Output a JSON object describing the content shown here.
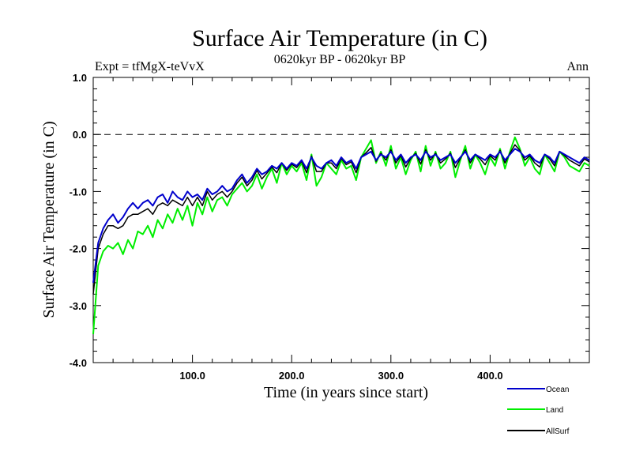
{
  "chart_data": {
    "type": "line",
    "title": "Surface Air Temperature (in C)",
    "subtitle": "0620kyr BP - 0620kyr BP",
    "left_header": "Expt = tfMgX-teVvX",
    "right_header": "Ann",
    "xlabel": "Time (in years since start)",
    "ylabel": "Surface Air Temperature (in C)",
    "xlim": [
      0,
      500
    ],
    "ylim": [
      -4.0,
      1.0
    ],
    "xticks": [
      100,
      200,
      300,
      400
    ],
    "xtick_labels": [
      "100.0",
      "200.0",
      "300.0",
      "400.0"
    ],
    "yticks": [
      1.0,
      0.0,
      -1.0,
      -2.0,
      -3.0,
      -4.0
    ],
    "ytick_labels": [
      "1.0",
      "0.0",
      "-1.0",
      "-2.0",
      "-3.0",
      "-4.0"
    ],
    "reference_line": {
      "y": 0.0,
      "style": "dashed"
    },
    "legend_position": "bottom-right, below plot",
    "x": [
      0,
      5,
      10,
      15,
      20,
      25,
      30,
      35,
      40,
      45,
      50,
      55,
      60,
      65,
      70,
      75,
      80,
      85,
      90,
      95,
      100,
      105,
      110,
      115,
      120,
      125,
      130,
      135,
      140,
      145,
      150,
      155,
      160,
      165,
      170,
      175,
      180,
      185,
      190,
      195,
      200,
      205,
      210,
      215,
      220,
      225,
      230,
      235,
      240,
      245,
      250,
      255,
      260,
      265,
      270,
      275,
      280,
      285,
      290,
      295,
      300,
      305,
      310,
      315,
      320,
      325,
      330,
      335,
      340,
      345,
      350,
      355,
      360,
      365,
      370,
      375,
      380,
      385,
      390,
      395,
      400,
      405,
      410,
      415,
      420,
      425,
      430,
      435,
      440,
      445,
      450,
      455,
      460,
      465,
      470,
      475,
      480,
      485,
      490,
      495,
      500
    ],
    "series": [
      {
        "name": "Ocean",
        "color": "#0000cc",
        "values": [
          -2.6,
          -1.9,
          -1.65,
          -1.5,
          -1.4,
          -1.55,
          -1.45,
          -1.3,
          -1.2,
          -1.3,
          -1.2,
          -1.15,
          -1.25,
          -1.1,
          -1.05,
          -1.2,
          -1.0,
          -1.1,
          -1.15,
          -1.0,
          -1.1,
          -1.05,
          -1.15,
          -0.95,
          -1.05,
          -1.0,
          -0.9,
          -1.0,
          -0.95,
          -0.8,
          -0.7,
          -0.85,
          -0.75,
          -0.6,
          -0.7,
          -0.65,
          -0.55,
          -0.6,
          -0.5,
          -0.6,
          -0.5,
          -0.55,
          -0.45,
          -0.6,
          -0.4,
          -0.55,
          -0.6,
          -0.5,
          -0.45,
          -0.55,
          -0.4,
          -0.5,
          -0.45,
          -0.6,
          -0.4,
          -0.35,
          -0.3,
          -0.45,
          -0.35,
          -0.4,
          -0.3,
          -0.45,
          -0.35,
          -0.5,
          -0.4,
          -0.35,
          -0.45,
          -0.3,
          -0.4,
          -0.35,
          -0.45,
          -0.4,
          -0.35,
          -0.5,
          -0.4,
          -0.3,
          -0.45,
          -0.35,
          -0.4,
          -0.45,
          -0.35,
          -0.4,
          -0.3,
          -0.45,
          -0.35,
          -0.25,
          -0.3,
          -0.4,
          -0.35,
          -0.45,
          -0.5,
          -0.35,
          -0.4,
          -0.5,
          -0.3,
          -0.35,
          -0.4,
          -0.45,
          -0.5,
          -0.4,
          -0.45
        ]
      },
      {
        "name": "Land",
        "color": "#00ee00",
        "values": [
          -3.5,
          -2.3,
          -2.05,
          -1.95,
          -2.0,
          -1.9,
          -2.1,
          -1.85,
          -2.0,
          -1.7,
          -1.75,
          -1.6,
          -1.8,
          -1.5,
          -1.65,
          -1.4,
          -1.55,
          -1.3,
          -1.5,
          -1.25,
          -1.6,
          -1.2,
          -1.4,
          -1.1,
          -1.35,
          -1.15,
          -1.1,
          -1.25,
          -1.05,
          -0.95,
          -0.85,
          -1.0,
          -0.9,
          -0.7,
          -0.95,
          -0.75,
          -0.6,
          -0.85,
          -0.5,
          -0.7,
          -0.55,
          -0.65,
          -0.5,
          -0.8,
          -0.35,
          -0.9,
          -0.75,
          -0.5,
          -0.6,
          -0.7,
          -0.45,
          -0.6,
          -0.55,
          -0.8,
          -0.4,
          -0.25,
          -0.1,
          -0.5,
          -0.3,
          -0.55,
          -0.2,
          -0.6,
          -0.4,
          -0.7,
          -0.45,
          -0.3,
          -0.65,
          -0.2,
          -0.55,
          -0.3,
          -0.6,
          -0.5,
          -0.3,
          -0.75,
          -0.45,
          -0.2,
          -0.6,
          -0.35,
          -0.5,
          -0.7,
          -0.4,
          -0.55,
          -0.25,
          -0.6,
          -0.3,
          -0.05,
          -0.25,
          -0.55,
          -0.4,
          -0.6,
          -0.7,
          -0.35,
          -0.5,
          -0.65,
          -0.3,
          -0.4,
          -0.55,
          -0.6,
          -0.65,
          -0.5,
          -0.55
        ]
      },
      {
        "name": "AllSurf",
        "color": "#000000",
        "values": [
          -2.8,
          -2.0,
          -1.75,
          -1.6,
          -1.6,
          -1.65,
          -1.6,
          -1.45,
          -1.4,
          -1.4,
          -1.35,
          -1.3,
          -1.4,
          -1.25,
          -1.2,
          -1.25,
          -1.15,
          -1.2,
          -1.25,
          -1.1,
          -1.25,
          -1.1,
          -1.25,
          -1.0,
          -1.15,
          -1.05,
          -1.0,
          -1.1,
          -1.0,
          -0.85,
          -0.75,
          -0.9,
          -0.8,
          -0.63,
          -0.78,
          -0.68,
          -0.57,
          -0.67,
          -0.5,
          -0.63,
          -0.52,
          -0.58,
          -0.47,
          -0.67,
          -0.38,
          -0.65,
          -0.65,
          -0.5,
          -0.5,
          -0.6,
          -0.42,
          -0.53,
          -0.48,
          -0.67,
          -0.4,
          -0.32,
          -0.23,
          -0.47,
          -0.33,
          -0.45,
          -0.27,
          -0.5,
          -0.37,
          -0.57,
          -0.42,
          -0.33,
          -0.52,
          -0.27,
          -0.45,
          -0.33,
          -0.5,
          -0.43,
          -0.33,
          -0.58,
          -0.42,
          -0.27,
          -0.5,
          -0.35,
          -0.43,
          -0.53,
          -0.37,
          -0.45,
          -0.28,
          -0.5,
          -0.33,
          -0.18,
          -0.28,
          -0.45,
          -0.37,
          -0.5,
          -0.57,
          -0.35,
          -0.43,
          -0.55,
          -0.3,
          -0.37,
          -0.45,
          -0.5,
          -0.55,
          -0.43,
          -0.48
        ]
      }
    ]
  }
}
